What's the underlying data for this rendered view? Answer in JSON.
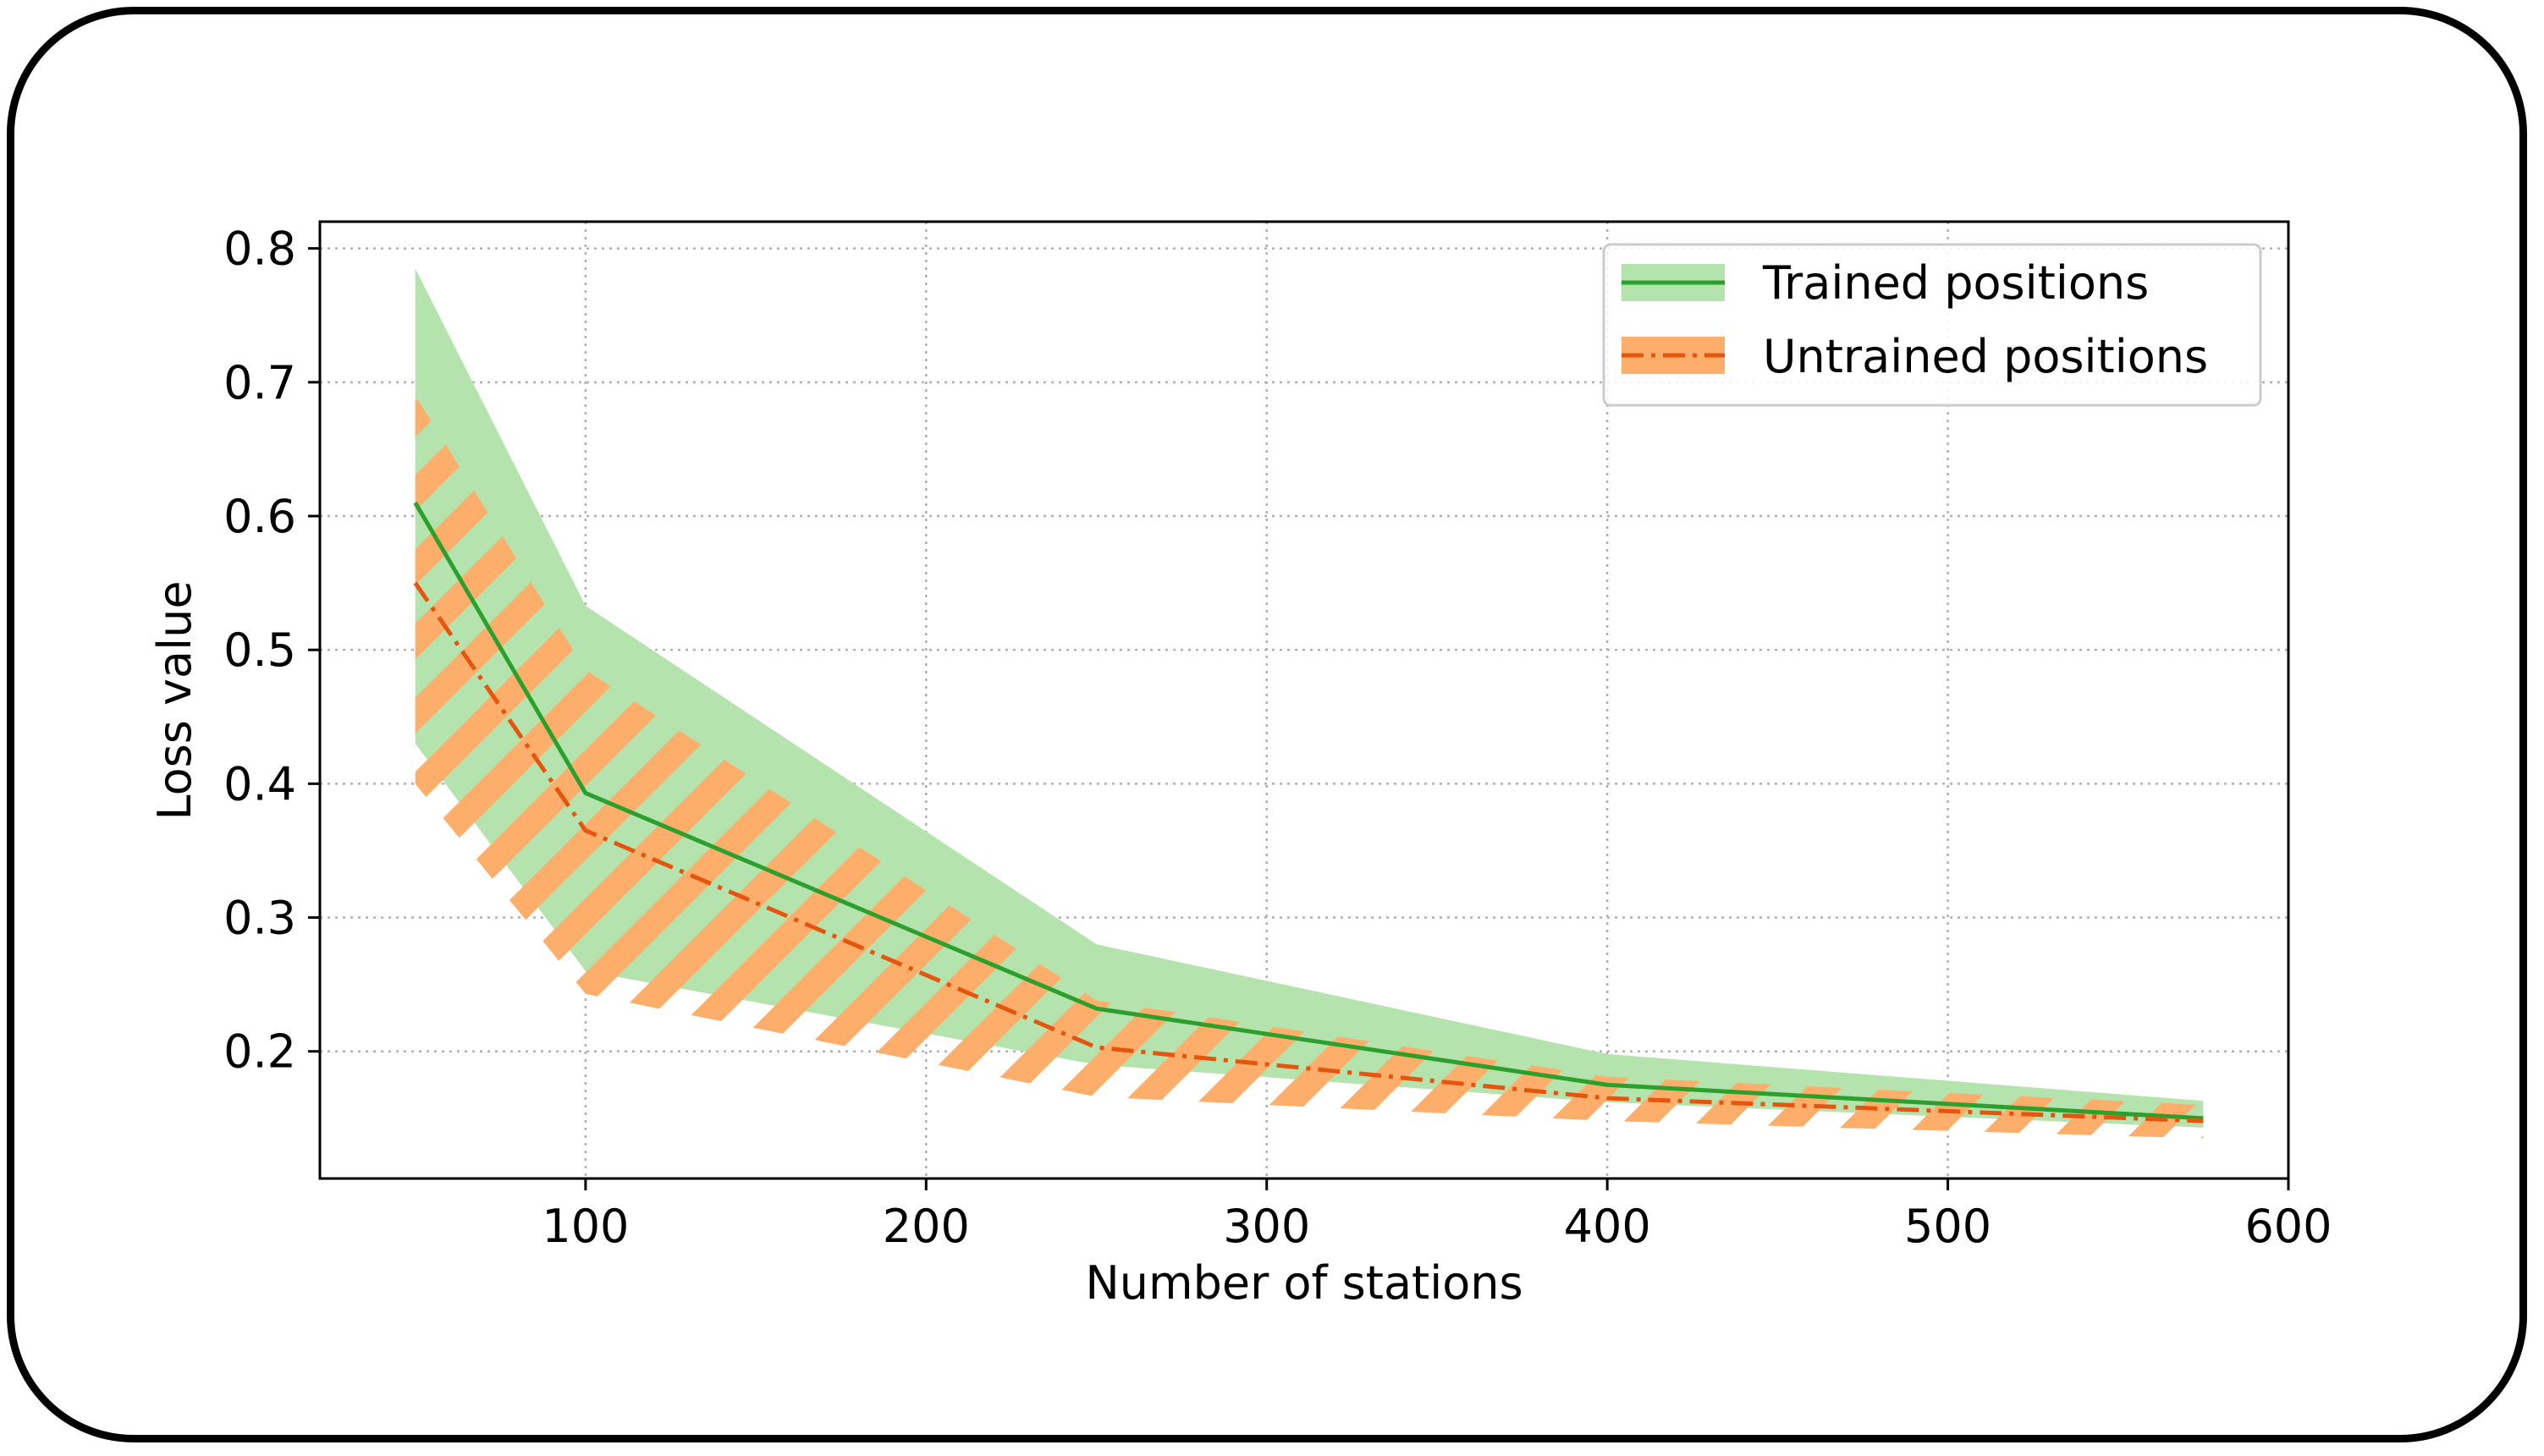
{
  "chart_data": {
    "type": "line",
    "title": "",
    "xlabel": "Number of stations",
    "ylabel": "Loss value",
    "xlim": [
      22,
      600
    ],
    "ylim": [
      0.105,
      0.82
    ],
    "x_ticks": [
      100,
      200,
      300,
      400,
      500,
      600
    ],
    "y_ticks": [
      0.2,
      0.3,
      0.4,
      0.5,
      0.6,
      0.7,
      0.8
    ],
    "x_tick_labels": [
      "100",
      "200",
      "300",
      "400",
      "500",
      "600"
    ],
    "y_tick_labels": [
      "0.2",
      "0.3",
      "0.4",
      "0.5",
      "0.6",
      "0.7",
      "0.8"
    ],
    "grid": true,
    "legend_position": "top-right",
    "x": [
      50,
      100,
      250,
      400,
      575
    ],
    "series": [
      {
        "name": "Trained positions",
        "color": "#2ca02c",
        "band_color": "#b5e3ad",
        "line_style": "solid",
        "values": [
          0.61,
          0.393,
          0.232,
          0.175,
          0.15
        ],
        "lower": [
          0.43,
          0.26,
          0.19,
          0.162,
          0.143
        ],
        "upper": [
          0.785,
          0.533,
          0.28,
          0.198,
          0.163
        ]
      },
      {
        "name": "Untrained positions",
        "color": "#e6550d",
        "band_color": "#fdae6b",
        "line_style": "dashdot",
        "values": [
          0.55,
          0.365,
          0.203,
          0.165,
          0.148
        ],
        "lower": [
          0.4,
          0.243,
          0.166,
          0.148,
          0.135
        ],
        "upper": [
          0.69,
          0.485,
          0.238,
          0.181,
          0.16
        ]
      }
    ]
  }
}
